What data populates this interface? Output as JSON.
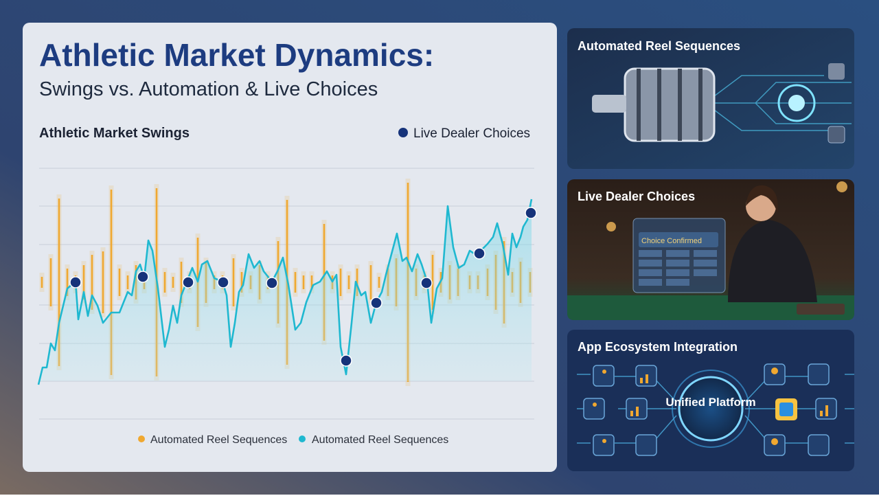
{
  "header": {
    "title": "Athletic Market Dynamics:",
    "subtitle": "Swings vs. Automation & Live Choices"
  },
  "chart_data": {
    "type": "combo",
    "title": "Athletic Market Swings",
    "xlim": [
      0,
      720
    ],
    "ylim": [
      -199,
      166
    ],
    "grid": true,
    "series": [
      {
        "name": "Automated Reel Sequences",
        "type": "swing",
        "color": "#f0a830",
        "x": [
          5,
          18,
          30,
          42,
          54,
          66,
          78,
          94,
          106,
          118,
          130,
          142,
          154,
          172,
          184,
          196,
          208,
          220,
          232,
          244,
          256,
          268,
          284,
          296,
          309,
          322,
          334,
          349,
          362,
          374,
          386,
          398,
          416,
          428,
          440,
          452,
          464,
          484,
          496,
          509,
          521,
          538,
          550,
          562,
          574,
          586,
          599,
          611,
          628,
          640,
          654,
          666,
          678,
          690,
          702,
          716
        ],
        "values": [
          8,
          35,
          122,
          20,
          10,
          25,
          40,
          45,
          135,
          20,
          10,
          25,
          10,
          137,
          15,
          8,
          30,
          10,
          65,
          30,
          10,
          10,
          35,
          15,
          10,
          25,
          10,
          60,
          120,
          15,
          10,
          10,
          85,
          10,
          20,
          10,
          20,
          25,
          8,
          20,
          35,
          145,
          20,
          10,
          40,
          15,
          25,
          20,
          10,
          10,
          20,
          40,
          60,
          15,
          30,
          15
        ]
      },
      {
        "name": "Automated Reel Sequences",
        "type": "line",
        "color": "#1fb8d0",
        "x": [
          0,
          6,
          12,
          18,
          24,
          30,
          42,
          54,
          58,
          66,
          72,
          78,
          86,
          94,
          106,
          118,
          130,
          136,
          142,
          148,
          154,
          160,
          166,
          174,
          184,
          190,
          196,
          202,
          208,
          216,
          224,
          232,
          238,
          246,
          256,
          268,
          274,
          280,
          286,
          292,
          298,
          306,
          314,
          322,
          328,
          340,
          348,
          356,
          364,
          374,
          382,
          390,
          400,
          410,
          420,
          428,
          434,
          440,
          448,
          456,
          462,
          470,
          476,
          484,
          492,
          500,
          506,
          514,
          522,
          530,
          536,
          544,
          552,
          558,
          566,
          572,
          580,
          588,
          596,
          604,
          612,
          620,
          628,
          636,
          644,
          654,
          662,
          668,
          676,
          684,
          690,
          696,
          702,
          706,
          712,
          718
        ],
        "values": [
          -149,
          -124,
          -124,
          -89,
          -99,
          -59,
          -9,
          1,
          -54,
          -14,
          -49,
          -19,
          -34,
          -59,
          -44,
          -44,
          -14,
          -19,
          16,
          26,
          6,
          61,
          46,
          -9,
          -94,
          -69,
          -34,
          -59,
          -19,
          1,
          21,
          1,
          26,
          31,
          6,
          1,
          -19,
          -94,
          -59,
          -14,
          -4,
          41,
          21,
          31,
          16,
          1,
          16,
          36,
          -4,
          -69,
          -59,
          -29,
          -4,
          1,
          16,
          1,
          11,
          -94,
          -134,
          -59,
          1,
          -19,
          -14,
          -59,
          -29,
          -14,
          11,
          41,
          71,
          31,
          36,
          16,
          41,
          26,
          1,
          -59,
          -9,
          6,
          111,
          51,
          21,
          26,
          46,
          41,
          46,
          56,
          66,
          86,
          56,
          11,
          71,
          51,
          66,
          81,
          91,
          121
        ]
      },
      {
        "name": "Live Dealer Choices",
        "type": "scatter",
        "color": "#16337a",
        "x": [
          54,
          152,
          218,
          269,
          340,
          448,
          492,
          565,
          642,
          717
        ],
        "values": [
          0,
          8,
          0,
          0,
          -1,
          -114,
          -30,
          -1,
          42,
          101
        ]
      }
    ]
  },
  "panels": [
    {
      "title": "Automated Reel Sequences"
    },
    {
      "title": "Live Dealer Choices",
      "screen": "Choice Confirmed"
    },
    {
      "title": "App Ecosystem Integration",
      "hub": "Unified Platform"
    }
  ]
}
